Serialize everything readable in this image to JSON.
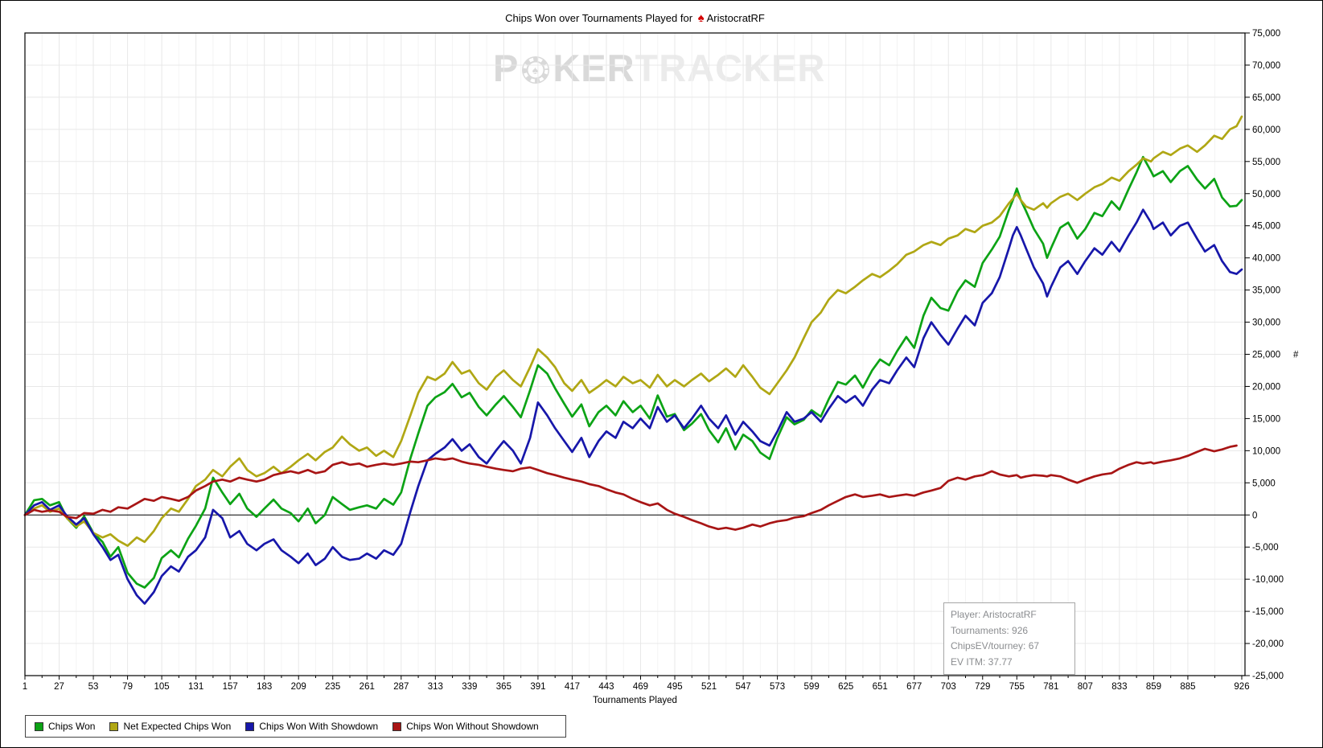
{
  "title": {
    "prefix": "Chips Won over Tournaments Played for",
    "player": "AristocratRF",
    "spade_icon": "pokerstars-red-spade"
  },
  "watermark": {
    "p1": "P",
    "p2": "KER",
    "p3": "TRACKER",
    "chip_icon": "poker-chip-spade"
  },
  "info_box": {
    "lines": [
      "Player: AristocratRF",
      "Tournaments: 926",
      "ChipsEV/tourney: 67",
      "EV ITM: 37.77"
    ]
  },
  "chart_data": {
    "type": "line",
    "title": "Chips Won over Tournaments Played for AristocratRF",
    "xlabel": "Tournaments Played",
    "ylabel": "#",
    "xlim": [
      1,
      926
    ],
    "ylim": [
      -25000,
      75000
    ],
    "grid": true,
    "legend_position": "bottom-left",
    "x_ticks": [
      1,
      27,
      53,
      79,
      105,
      131,
      157,
      183,
      209,
      235,
      261,
      287,
      313,
      339,
      365,
      391,
      417,
      443,
      469,
      495,
      521,
      547,
      573,
      599,
      625,
      651,
      677,
      703,
      729,
      755,
      781,
      807,
      833,
      859,
      885,
      926
    ],
    "y_ticks": [
      75000,
      70000,
      65000,
      60000,
      55000,
      50000,
      45000,
      40000,
      35000,
      30000,
      25000,
      20000,
      15000,
      10000,
      5000,
      0,
      -5000,
      -10000,
      -15000,
      -20000,
      -25000
    ],
    "x": [
      1,
      8,
      14,
      20,
      27,
      33,
      40,
      46,
      53,
      60,
      66,
      72,
      79,
      86,
      92,
      99,
      105,
      112,
      118,
      125,
      131,
      138,
      144,
      151,
      157,
      164,
      170,
      177,
      183,
      190,
      196,
      203,
      209,
      216,
      222,
      229,
      235,
      242,
      248,
      255,
      261,
      268,
      274,
      281,
      287,
      294,
      300,
      307,
      313,
      320,
      326,
      333,
      339,
      346,
      352,
      359,
      365,
      372,
      378,
      385,
      391,
      398,
      404,
      411,
      417,
      424,
      430,
      437,
      443,
      450,
      456,
      463,
      469,
      476,
      482,
      489,
      495,
      502,
      508,
      515,
      521,
      528,
      534,
      541,
      547,
      554,
      560,
      567,
      573,
      580,
      586,
      593,
      599,
      606,
      612,
      619,
      625,
      632,
      638,
      645,
      651,
      658,
      664,
      671,
      677,
      684,
      690,
      697,
      703,
      710,
      716,
      723,
      729,
      736,
      742,
      749,
      752,
      755,
      758,
      762,
      768,
      775,
      778,
      781,
      788,
      794,
      801,
      807,
      814,
      820,
      827,
      833,
      840,
      846,
      851,
      857,
      859,
      866,
      872,
      879,
      885,
      892,
      898,
      905,
      911,
      917,
      922,
      926
    ],
    "series": [
      {
        "name": "Chips Won",
        "color": "#0ca315",
        "values": [
          0,
          2300,
          2500,
          1500,
          2000,
          -500,
          -2000,
          -200,
          -2800,
          -4200,
          -6500,
          -5000,
          -9000,
          -10700,
          -11300,
          -9800,
          -6700,
          -5500,
          -6600,
          -3700,
          -1700,
          1000,
          5800,
          3500,
          1700,
          3300,
          1000,
          -300,
          1000,
          2400,
          1000,
          300,
          -1000,
          1000,
          -1300,
          0,
          2800,
          1700,
          800,
          1200,
          1500,
          1000,
          2500,
          1600,
          3500,
          8800,
          12700,
          17000,
          18300,
          19100,
          20400,
          18300,
          19000,
          16800,
          15500,
          17200,
          18500,
          16800,
          15200,
          19400,
          23300,
          22000,
          19700,
          17300,
          15300,
          17200,
          13800,
          16000,
          17000,
          15500,
          17700,
          16000,
          17000,
          15000,
          18600,
          15300,
          15700,
          13200,
          14200,
          15700,
          13200,
          11300,
          13500,
          10200,
          12500,
          11500,
          9700,
          8700,
          12000,
          15200,
          14100,
          14800,
          16300,
          15300,
          18000,
          20700,
          20300,
          21700,
          19800,
          22500,
          24200,
          23300,
          25500,
          27700,
          26000,
          31000,
          33800,
          32200,
          31800,
          34800,
          36500,
          35500,
          39200,
          41300,
          43300,
          47500,
          49000,
          50800,
          49000,
          47300,
          44500,
          42200,
          40000,
          41500,
          44700,
          45500,
          43000,
          44500,
          47000,
          46500,
          48800,
          47500,
          50700,
          53300,
          55700,
          53500,
          52700,
          53500,
          51800,
          53500,
          54300,
          52200,
          50800,
          52300,
          49400,
          48000,
          48100,
          49000
        ]
      },
      {
        "name": "Net Expected Chips Won",
        "color": "#b0a714",
        "values": [
          0,
          1000,
          1500,
          500,
          1000,
          -500,
          -1800,
          -1000,
          -2800,
          -3500,
          -3000,
          -4000,
          -4800,
          -3500,
          -4200,
          -2500,
          -500,
          1000,
          500,
          2500,
          4500,
          5500,
          7000,
          6000,
          7500,
          8800,
          7000,
          6000,
          6500,
          7500,
          6500,
          7500,
          8500,
          9500,
          8500,
          9800,
          10500,
          12200,
          11000,
          10000,
          10500,
          9200,
          10000,
          9000,
          11500,
          15500,
          19000,
          21500,
          21000,
          22000,
          23800,
          22000,
          22500,
          20500,
          19500,
          21500,
          22500,
          21000,
          20000,
          23000,
          25800,
          24500,
          23000,
          20500,
          19300,
          21000,
          19000,
          20000,
          21000,
          20000,
          21500,
          20500,
          21000,
          19800,
          21800,
          20000,
          21000,
          20000,
          21000,
          22000,
          20800,
          21800,
          22800,
          21500,
          23300,
          21500,
          19800,
          18800,
          20500,
          22500,
          24500,
          27500,
          30000,
          31500,
          33500,
          35000,
          34500,
          35500,
          36500,
          37500,
          37000,
          38000,
          39000,
          40500,
          41000,
          42000,
          42500,
          42000,
          43000,
          43500,
          44500,
          44000,
          45000,
          45500,
          46500,
          48500,
          49200,
          50000,
          49000,
          48000,
          47500,
          48500,
          47800,
          48500,
          49500,
          50000,
          49000,
          50000,
          51000,
          51500,
          52500,
          52000,
          53500,
          54500,
          55500,
          55000,
          55500,
          56500,
          56000,
          57000,
          57500,
          56500,
          57500,
          59000,
          58500,
          60000,
          60500,
          62000
        ]
      },
      {
        "name": "Chips Won With Showdown",
        "color": "#1717aa",
        "values": [
          0,
          1500,
          2000,
          800,
          1500,
          -200,
          -1500,
          -500,
          -3000,
          -5000,
          -7000,
          -6200,
          -10000,
          -12500,
          -13800,
          -12000,
          -9500,
          -8000,
          -8800,
          -6500,
          -5500,
          -3500,
          800,
          -500,
          -3500,
          -2500,
          -4500,
          -5500,
          -4500,
          -3800,
          -5500,
          -6500,
          -7500,
          -6000,
          -7800,
          -6800,
          -5000,
          -6500,
          -7000,
          -6800,
          -6000,
          -6800,
          -5500,
          -6200,
          -4500,
          500,
          4500,
          8500,
          9500,
          10500,
          11800,
          10000,
          11000,
          9000,
          8000,
          10000,
          11500,
          10000,
          8000,
          12000,
          17500,
          15500,
          13500,
          11500,
          9800,
          12000,
          9000,
          11500,
          13000,
          12000,
          14500,
          13500,
          15000,
          13500,
          16800,
          14500,
          15500,
          13500,
          15000,
          17000,
          15000,
          13500,
          15500,
          12500,
          14500,
          13000,
          11500,
          10800,
          13000,
          16000,
          14500,
          15000,
          16000,
          14500,
          16500,
          18500,
          17500,
          18500,
          17000,
          19500,
          21000,
          20500,
          22500,
          24500,
          23000,
          27500,
          30000,
          28000,
          26500,
          29000,
          31000,
          29500,
          33000,
          34500,
          37000,
          41500,
          43500,
          44800,
          43500,
          41500,
          38500,
          36000,
          34000,
          35500,
          38500,
          39500,
          37500,
          39500,
          41500,
          40500,
          42500,
          41000,
          43500,
          45500,
          47500,
          45500,
          44500,
          45500,
          43500,
          45000,
          45500,
          43000,
          41000,
          42000,
          39500,
          37800,
          37500,
          38200
        ]
      },
      {
        "name": "Chips Won Without Showdown",
        "color": "#a81515",
        "values": [
          0,
          800,
          500,
          700,
          500,
          -300,
          -500,
          300,
          200,
          800,
          500,
          1200,
          1000,
          1800,
          2500,
          2200,
          2800,
          2500,
          2200,
          2800,
          3800,
          4500,
          5200,
          5500,
          5200,
          5800,
          5500,
          5200,
          5500,
          6200,
          6500,
          6800,
          6500,
          7000,
          6500,
          6800,
          7800,
          8200,
          7800,
          8000,
          7500,
          7800,
          8000,
          7800,
          8000,
          8300,
          8200,
          8500,
          8800,
          8600,
          8800,
          8300,
          8000,
          7800,
          7500,
          7200,
          7000,
          6800,
          7200,
          7400,
          7000,
          6500,
          6200,
          5800,
          5500,
          5200,
          4800,
          4500,
          4000,
          3500,
          3200,
          2500,
          2000,
          1500,
          1800,
          800,
          200,
          -300,
          -800,
          -1300,
          -1800,
          -2200,
          -2000,
          -2300,
          -2000,
          -1500,
          -1800,
          -1300,
          -1000,
          -800,
          -400,
          -200,
          300,
          800,
          1500,
          2200,
          2800,
          3200,
          2800,
          3000,
          3200,
          2800,
          3000,
          3200,
          3000,
          3500,
          3800,
          4200,
          5300,
          5800,
          5500,
          6000,
          6200,
          6800,
          6300,
          6000,
          6100,
          6200,
          5800,
          6000,
          6200,
          6100,
          6000,
          6200,
          6000,
          5500,
          5000,
          5500,
          6000,
          6300,
          6500,
          7200,
          7800,
          8200,
          8000,
          8200,
          8000,
          8300,
          8500,
          8800,
          9200,
          9800,
          10300,
          9900,
          10200,
          10600,
          10800
        ]
      }
    ]
  },
  "colors": {
    "grid_major": "#e8e8e8",
    "grid_minor": "#f4f4f4",
    "axis": "#000000",
    "zero_line": "#000000",
    "watermark_dark": "#d9d9d9",
    "watermark_light": "#ebebeb",
    "info_text": "#8b8d90",
    "spade_red": "#d40000"
  }
}
